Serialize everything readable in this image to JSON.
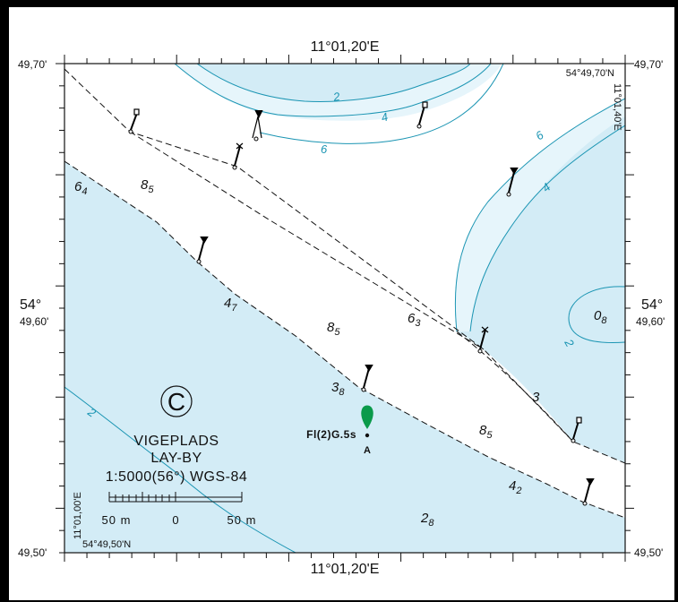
{
  "colors": {
    "shallow": "#d3ecf6",
    "light_shallow": "#e6f5fb",
    "deep": "#ffffff",
    "contour": "#1b95b3",
    "border": "#000000",
    "frame": "#ffffff",
    "light_green": "#0a9a4a"
  },
  "coords": {
    "top_center": "11°01,20'E",
    "bottom_center": "11°01,20'E",
    "lat_top_left": "49,70'",
    "lat_top_right": "49,70'",
    "lat_mid_left_deg": "54°",
    "lat_mid_left_min": "49,60'",
    "lat_mid_right_deg": "54°",
    "lat_mid_right_min": "49,60'",
    "lat_bottom_left": "49,50'",
    "lat_bottom_right": "49,50'",
    "corner_ne_lat": "54°49,70'N",
    "corner_ne_lon": "11°01,40'E",
    "corner_sw_lat": "54°49,50'N",
    "corner_sw_lon": "11°01,00'E"
  },
  "contour_labels": [
    "2",
    "4",
    "6",
    "6",
    "4",
    "2",
    "2"
  ],
  "soundings": [
    {
      "main": "6",
      "sub": "4"
    },
    {
      "main": "8",
      "sub": "5"
    },
    {
      "main": "4",
      "sub": "7"
    },
    {
      "main": "8",
      "sub": "5"
    },
    {
      "main": "6",
      "sub": "3"
    },
    {
      "main": "0",
      "sub": "8"
    },
    {
      "main": "3",
      "sub": "8"
    },
    {
      "main": "3",
      "sub": ""
    },
    {
      "main": "8",
      "sub": "5"
    },
    {
      "main": "4",
      "sub": "2"
    },
    {
      "main": "2",
      "sub": "8"
    }
  ],
  "light": {
    "characteristic": "Fl(2)G.5s",
    "label": "A"
  },
  "title": {
    "letter": "C",
    "line1": "VIGEPLADS",
    "line2": "LAY-BY",
    "scale": "1:5000(56°) WGS-84"
  },
  "scalebar": {
    "left": "50 m",
    "center": "0",
    "right": "50 m"
  }
}
